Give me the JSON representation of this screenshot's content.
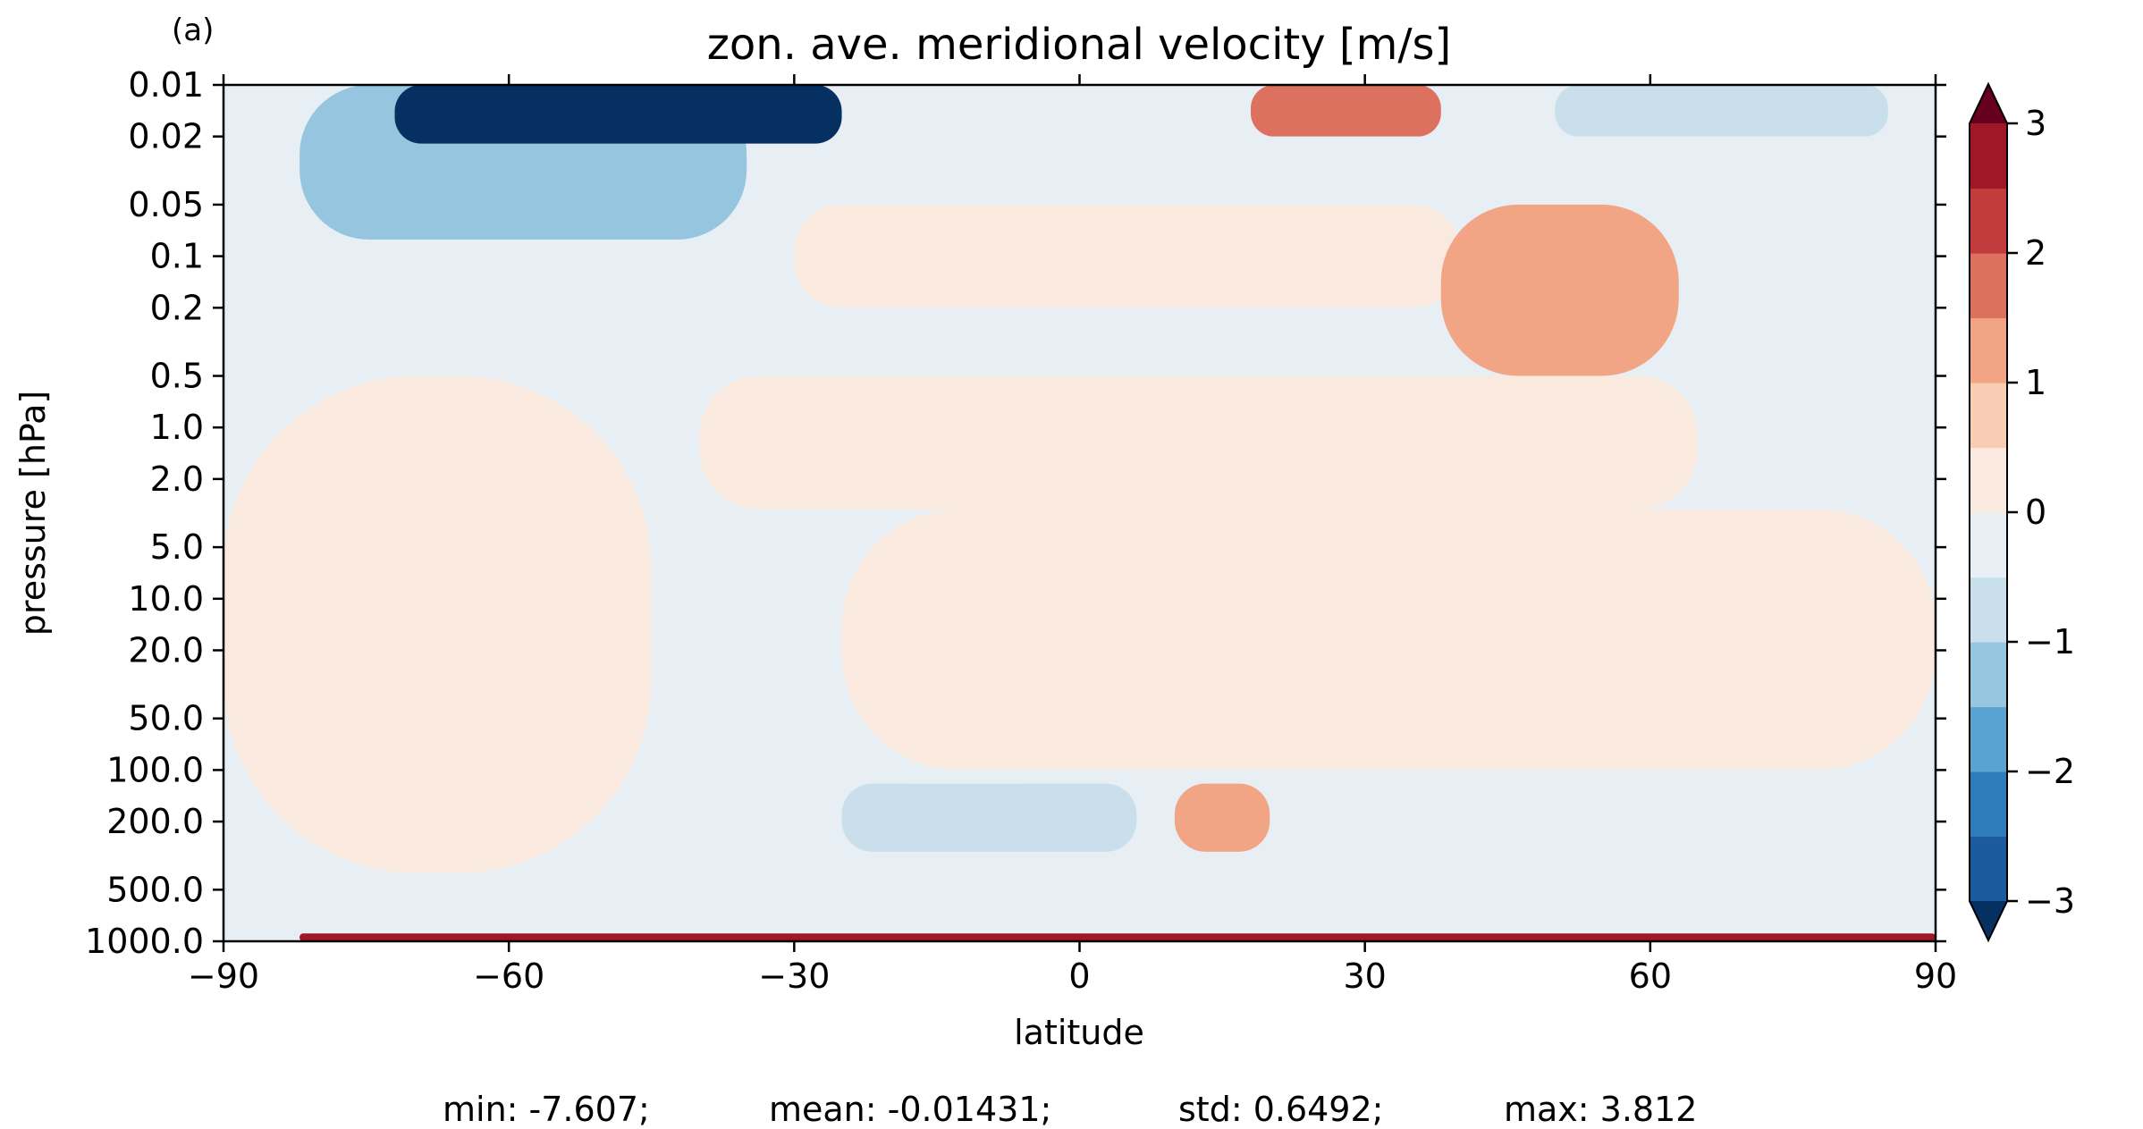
{
  "panel_label": "(a)",
  "title": "zon. ave. meridional velocity [m/s]",
  "stats": {
    "min": "min: -7.607;",
    "mean": "mean: -0.01431;",
    "std": "std: 0.6492;",
    "max": "max: 3.812"
  },
  "chart_data": {
    "type": "heatmap",
    "title": "zon. ave. meridional velocity [m/s]",
    "xlabel": "latitude",
    "ylabel": "pressure [hPa]",
    "xlim": [
      -90,
      90
    ],
    "ylim": [
      1000.0,
      0.01
    ],
    "y_scale": "log",
    "x_ticks": [
      -90,
      -60,
      -30,
      0,
      30,
      60,
      90
    ],
    "x_tick_labels": [
      "−90",
      "−60",
      "−30",
      "0",
      "30",
      "60",
      "90"
    ],
    "y_ticks": [
      0.01,
      0.02,
      0.05,
      0.1,
      0.2,
      0.5,
      1.0,
      2.0,
      5.0,
      10.0,
      20.0,
      50.0,
      100.0,
      200.0,
      500.0,
      1000.0
    ],
    "y_tick_labels": [
      "0.01",
      "0.02",
      "0.05",
      "0.1",
      "0.2",
      "0.5",
      "1.0",
      "2.0",
      "5.0",
      "10.0",
      "20.0",
      "50.0",
      "100.0",
      "200.0",
      "500.0",
      "1000.0"
    ],
    "colorbar": {
      "levels": [
        -3.0,
        -2.5,
        -2.0,
        -1.5,
        -1.0,
        -0.5,
        0.0,
        0.5,
        1.0,
        1.5,
        2.0,
        2.5,
        3.0
      ],
      "colors": [
        "#1b5a9c",
        "#2f7cbb",
        "#5aa2cf",
        "#95c5df",
        "#c9e0ec",
        "#e7eff4",
        "#fae9df",
        "#f9cdb3",
        "#f2a585",
        "#dc7160",
        "#c23c3e",
        "#a01828"
      ],
      "under_color": "#053061",
      "over_color": "#67001f",
      "extend": "both",
      "tick_values": [
        -3,
        -2,
        -1,
        0,
        1,
        2,
        3
      ],
      "tick_labels": [
        "−3",
        "−2",
        "−1",
        "0",
        "1",
        "2",
        "3"
      ]
    },
    "regions": [
      {
        "level": -0.5,
        "color": "#e7eff4",
        "lat": [
          -90,
          90
        ],
        "p": [
          0.01,
          1000
        ],
        "note": "background weak negative"
      },
      {
        "level": 0.0,
        "color": "#fae9df",
        "lat": [
          -90,
          -45
        ],
        "p": [
          0.5,
          400
        ],
        "note": "weak positive southern mid levels"
      },
      {
        "level": 0.0,
        "color": "#fae9df",
        "lat": [
          -30,
          40
        ],
        "p": [
          0.05,
          0.2
        ],
        "note": "weak positive upper tropics"
      },
      {
        "level": 0.0,
        "color": "#fae9df",
        "lat": [
          -40,
          65
        ],
        "p": [
          0.5,
          3.0
        ],
        "note": "weak positive band"
      },
      {
        "level": 0.0,
        "color": "#fae9df",
        "lat": [
          -25,
          90
        ],
        "p": [
          3.0,
          100
        ],
        "note": "weak positive northern mid levels"
      },
      {
        "level": -1.5,
        "color": "#95c5df",
        "lat": [
          -82,
          -35
        ],
        "p": [
          0.01,
          0.08
        ],
        "note": "southern upper jet"
      },
      {
        "level": -3.0,
        "color": "#053061",
        "lat": [
          -72,
          -25
        ],
        "p": [
          0.01,
          0.022
        ],
        "note": "strong negative core"
      },
      {
        "level": 1.5,
        "color": "#dc7160",
        "lat": [
          18,
          38
        ],
        "p": [
          0.01,
          0.02
        ],
        "note": "northern upper positive"
      },
      {
        "level": 1.0,
        "color": "#f2a585",
        "lat": [
          38,
          63
        ],
        "p": [
          0.05,
          0.5
        ],
        "note": "northern positive lobe"
      },
      {
        "level": -0.5,
        "color": "#c9e0ec",
        "lat": [
          50,
          85
        ],
        "p": [
          0.01,
          0.02
        ],
        "note": "northern upper negative"
      },
      {
        "level": 1.0,
        "color": "#f2a585",
        "lat": [
          10,
          20
        ],
        "p": [
          120,
          300
        ],
        "note": "low level positive cell"
      },
      {
        "level": -1.0,
        "color": "#c9e0ec",
        "lat": [
          -25,
          6
        ],
        "p": [
          120,
          300
        ],
        "note": "low level negative cell"
      },
      {
        "level": 3.0,
        "color": "#a01828",
        "lat": [
          -82,
          90
        ],
        "p": [
          900,
          1000
        ],
        "note": "thin surface layer"
      }
    ]
  }
}
